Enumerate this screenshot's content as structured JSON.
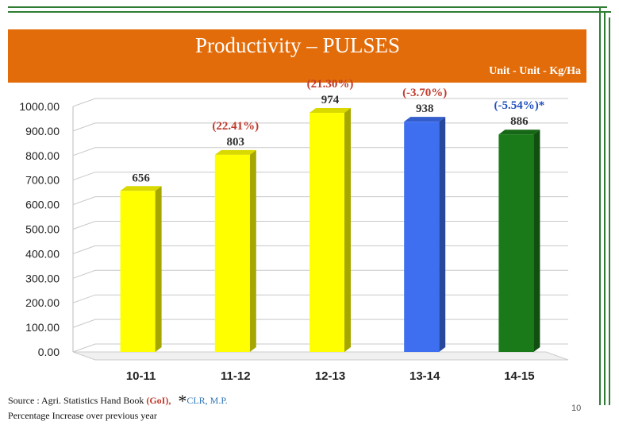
{
  "slide": {
    "title": "Productivity – PULSES",
    "unit": "Unit - Unit - Kg/Ha",
    "source_prefix": "Source : Agri. Statistics Hand Book",
    "source_goi": "(GoI),",
    "source_star": "*",
    "source_clr": "CLR, M.P.",
    "note": "Percentage Increase over previous year",
    "page_number": "10",
    "colors": {
      "header": "#e36c0a",
      "frame": "#2e7d32",
      "pct_positive": "#c0392b",
      "pct_negative": "#1f4fbf"
    }
  },
  "chart_data": {
    "type": "bar",
    "categories": [
      "10-11",
      "11-12",
      "12-13",
      "13-14",
      "14-15"
    ],
    "values": [
      656,
      803,
      974,
      938,
      886
    ],
    "value_labels": [
      "656",
      "803",
      "974",
      "938",
      "886"
    ],
    "pct_labels": [
      "",
      "(22.41%)",
      "(21.30%)",
      "(-3.70%)",
      "(-5.54%)*"
    ],
    "pct_colors": [
      "#c0392b",
      "#c0392b",
      "#c0392b",
      "#c0392b",
      "#1f4fbf"
    ],
    "bar_colors": [
      "#ffff00",
      "#ffff00",
      "#ffff00",
      "#3d6ff0",
      "#1a7a1a"
    ],
    "ylim": [
      0,
      1000
    ],
    "yticks": [
      "0.00",
      "100.00",
      "200.00",
      "300.00",
      "400.00",
      "500.00",
      "600.00",
      "700.00",
      "800.00",
      "900.00",
      "1000.00"
    ],
    "title": "",
    "xlabel": "",
    "ylabel": "",
    "grid": true
  }
}
